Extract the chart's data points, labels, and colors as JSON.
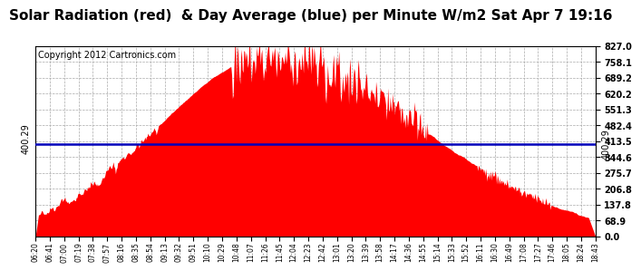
{
  "title": "Solar Radiation (red)  & Day Average (blue) per Minute W/m2 Sat Apr 7 19:16",
  "copyright": "Copyright 2012 Cartronics.com",
  "y_max": 827.0,
  "y_min": 0.0,
  "day_average": 400.29,
  "avg_label": "400.29",
  "y_ticks": [
    0.0,
    68.9,
    137.8,
    206.8,
    275.7,
    344.6,
    413.5,
    482.4,
    551.3,
    620.2,
    689.2,
    758.1,
    827.0
  ],
  "x_tick_labels": [
    "06:20",
    "06:41",
    "07:00",
    "07:19",
    "07:38",
    "07:57",
    "08:16",
    "08:35",
    "08:54",
    "09:13",
    "09:32",
    "09:51",
    "10:10",
    "10:29",
    "10:48",
    "11:07",
    "11:26",
    "11:45",
    "12:04",
    "12:23",
    "12:42",
    "13:01",
    "13:20",
    "13:39",
    "13:58",
    "14:17",
    "14:36",
    "14:55",
    "15:14",
    "15:33",
    "15:52",
    "16:11",
    "16:30",
    "16:49",
    "17:08",
    "17:27",
    "17:46",
    "18:05",
    "18:24",
    "18:43"
  ],
  "fill_color": "#FF0000",
  "line_color": "#0000BB",
  "background_color": "#FFFFFF",
  "grid_color": "#AAAAAA",
  "title_fontsize": 11,
  "copyright_fontsize": 7
}
